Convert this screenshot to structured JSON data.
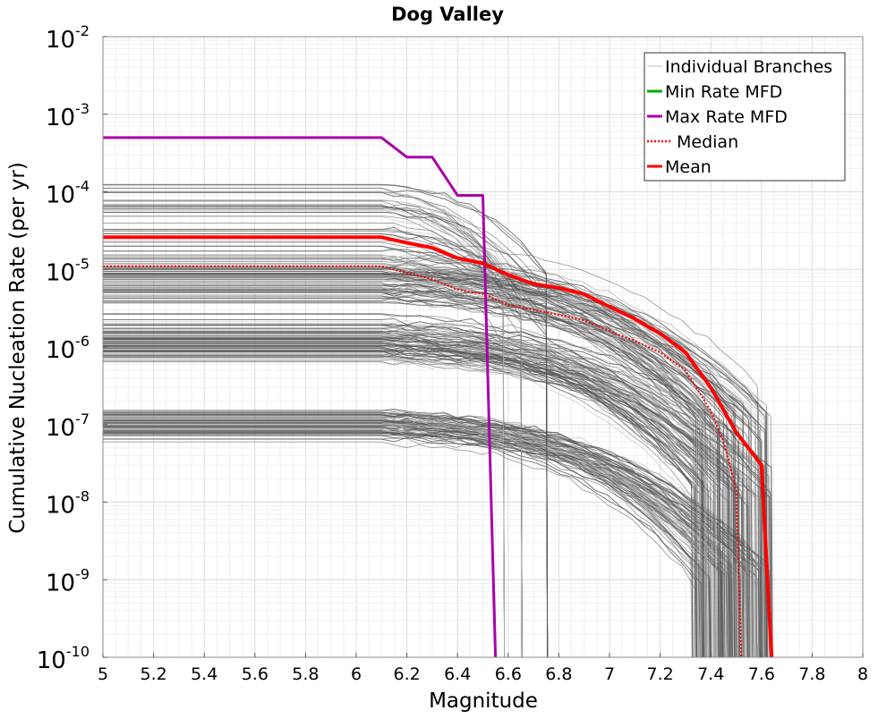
{
  "chart_data": {
    "type": "line",
    "title": "Dog Valley",
    "xlabel": "Magnitude",
    "ylabel": "Cumulative Nucleation Rate (per yr)",
    "xlim": [
      5,
      8
    ],
    "ylim_log10": [
      -10,
      -2
    ],
    "y_scale": "log",
    "grid": true,
    "legend_position": "top-right",
    "x_ticks": [
      "5",
      "5.2",
      "5.4",
      "5.6",
      "5.8",
      "6",
      "6.2",
      "6.4",
      "6.6",
      "6.8",
      "7",
      "7.2",
      "7.4",
      "7.6",
      "7.8",
      "8"
    ],
    "y_ticks": [
      {
        "base": "10",
        "exp": "-2",
        "log": -2
      },
      {
        "base": "10",
        "exp": "-3",
        "log": -3
      },
      {
        "base": "10",
        "exp": "-4",
        "log": -4
      },
      {
        "base": "10",
        "exp": "-5",
        "log": -5
      },
      {
        "base": "10",
        "exp": "-6",
        "log": -6
      },
      {
        "base": "10",
        "exp": "-7",
        "log": -7
      },
      {
        "base": "10",
        "exp": "-8",
        "log": -8
      },
      {
        "base": "10",
        "exp": "-9",
        "log": -9
      },
      {
        "base": "10",
        "exp": "-10",
        "log": -10
      }
    ],
    "colors": {
      "branches": "#555555",
      "branches_light": "#bbbbbb",
      "min_rate": "#00aa00",
      "max_rate": "#aa00aa",
      "median": "#ff0000",
      "mean": "#ff0000",
      "grid": "#e6e6e6"
    },
    "legend": [
      {
        "label": "Individual Branches",
        "color": "#bbbbbb",
        "style": "thin"
      },
      {
        "label": "Min Rate MFD",
        "color": "#00aa00",
        "style": "solid"
      },
      {
        "label": "Max Rate MFD",
        "color": "#aa00aa",
        "style": "solid"
      },
      {
        "label": "Median",
        "color": "#ff0000",
        "style": "dotted"
      },
      {
        "label": "Mean",
        "color": "#ff0000",
        "style": "solid"
      }
    ],
    "series": [
      {
        "name": "Max Rate MFD",
        "color": "#aa00aa",
        "x": [
          5.0,
          6.1,
          6.2,
          6.3,
          6.4,
          6.5,
          6.55
        ],
        "y": [
          0.0005,
          0.0005,
          0.00028,
          0.00028,
          9e-05,
          9e-05,
          1e-10
        ]
      },
      {
        "name": "Mean",
        "color": "#ff0000",
        "x": [
          5.0,
          6.1,
          6.2,
          6.3,
          6.4,
          6.5,
          6.6,
          6.7,
          6.8,
          6.9,
          7.0,
          7.1,
          7.2,
          7.3,
          7.4,
          7.5,
          7.6,
          7.64
        ],
        "y": [
          2.6e-05,
          2.6e-05,
          2.2e-05,
          1.9e-05,
          1.4e-05,
          1.2e-05,
          8.5e-06,
          6.5e-06,
          5.8e-06,
          4.8e-06,
          3.3e-06,
          2.3e-06,
          1.5e-06,
          8.5e-07,
          3e-07,
          8e-08,
          3e-08,
          1e-10
        ]
      },
      {
        "name": "Median",
        "color": "#ff0000",
        "x": [
          5.0,
          6.1,
          6.2,
          6.3,
          6.4,
          6.5,
          6.6,
          6.7,
          6.8,
          6.9,
          7.0,
          7.1,
          7.2,
          7.3,
          7.4,
          7.45,
          7.5,
          7.52
        ],
        "y": [
          1.1e-05,
          1.1e-05,
          9e-06,
          7.5e-06,
          5.5e-06,
          4.8e-06,
          3.5e-06,
          3e-06,
          2.6e-06,
          2.2e-06,
          1.6e-06,
          1.2e-06,
          8.5e-07,
          5e-07,
          1.5e-07,
          6e-08,
          1.5e-08,
          1e-10
        ]
      }
    ]
  }
}
